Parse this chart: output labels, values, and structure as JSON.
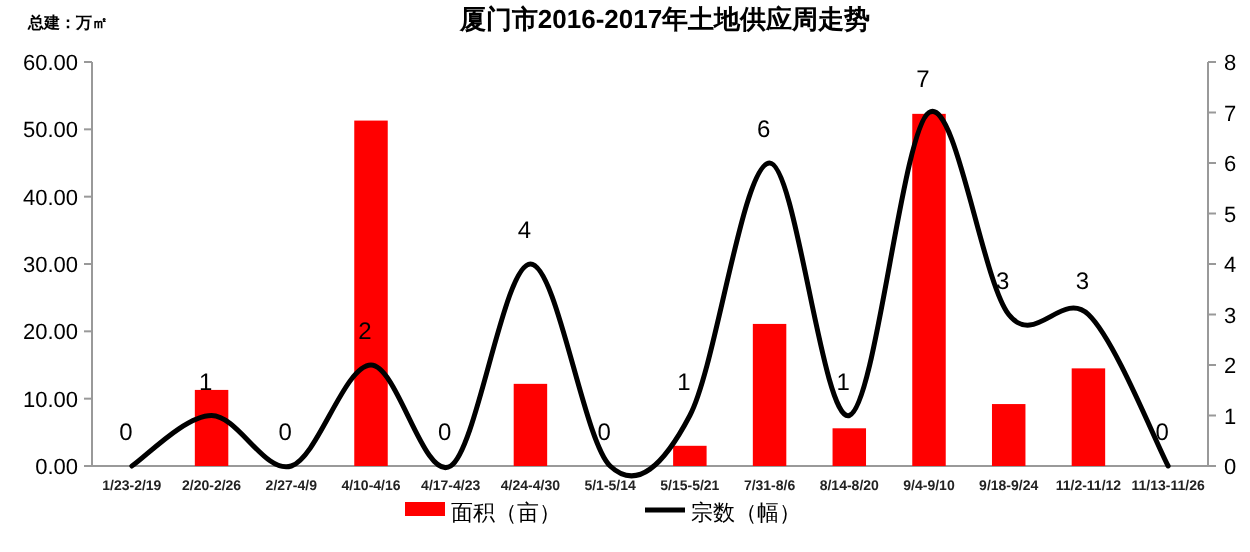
{
  "chart_data": {
    "type": "bar",
    "title": "厦门市2016-2017年土地供应周走势",
    "ylabel": "总建：万㎡",
    "categories": [
      "1/23-2/19",
      "2/20-2/26",
      "2/27-4/9",
      "4/10-4/16",
      "4/17-4/23",
      "4/24-4/30",
      "5/1-5/14",
      "5/15-5/21",
      "7/31-8/6",
      "8/14-8/20",
      "9/4-9/10",
      "9/18-9/24",
      "11/2-11/12",
      "11/13-11/26"
    ],
    "series": [
      {
        "name": "面积（亩）",
        "color": "#ff0000",
        "values": [
          0,
          11.3,
          0,
          51.3,
          0,
          12.2,
          0,
          3.0,
          21.1,
          5.6,
          52.3,
          9.2,
          14.5,
          0
        ]
      },
      {
        "name": "宗数（幅）",
        "type": "line",
        "axis": "y2",
        "color": "#000000",
        "data_labels": true,
        "values": [
          0,
          1,
          0,
          2,
          0,
          4,
          0,
          1,
          6,
          1,
          7,
          3,
          3,
          0
        ]
      }
    ],
    "ylim": [
      0,
      60
    ],
    "yticks": [
      {
        "value": 0,
        "label": "0.00"
      },
      {
        "value": 10,
        "label": "10.00"
      },
      {
        "value": 20,
        "label": "20.00"
      },
      {
        "value": 30,
        "label": "30.00"
      },
      {
        "value": 40,
        "label": "40.00"
      },
      {
        "value": 50,
        "label": "50.00"
      },
      {
        "value": 60,
        "label": "60.00"
      }
    ],
    "y2lim": [
      0,
      8
    ],
    "y2ticks": [
      0,
      1,
      2,
      3,
      4,
      5,
      6,
      7,
      8
    ],
    "grid": false,
    "legend": "bottom",
    "line_style": "solid",
    "marker": "none"
  }
}
